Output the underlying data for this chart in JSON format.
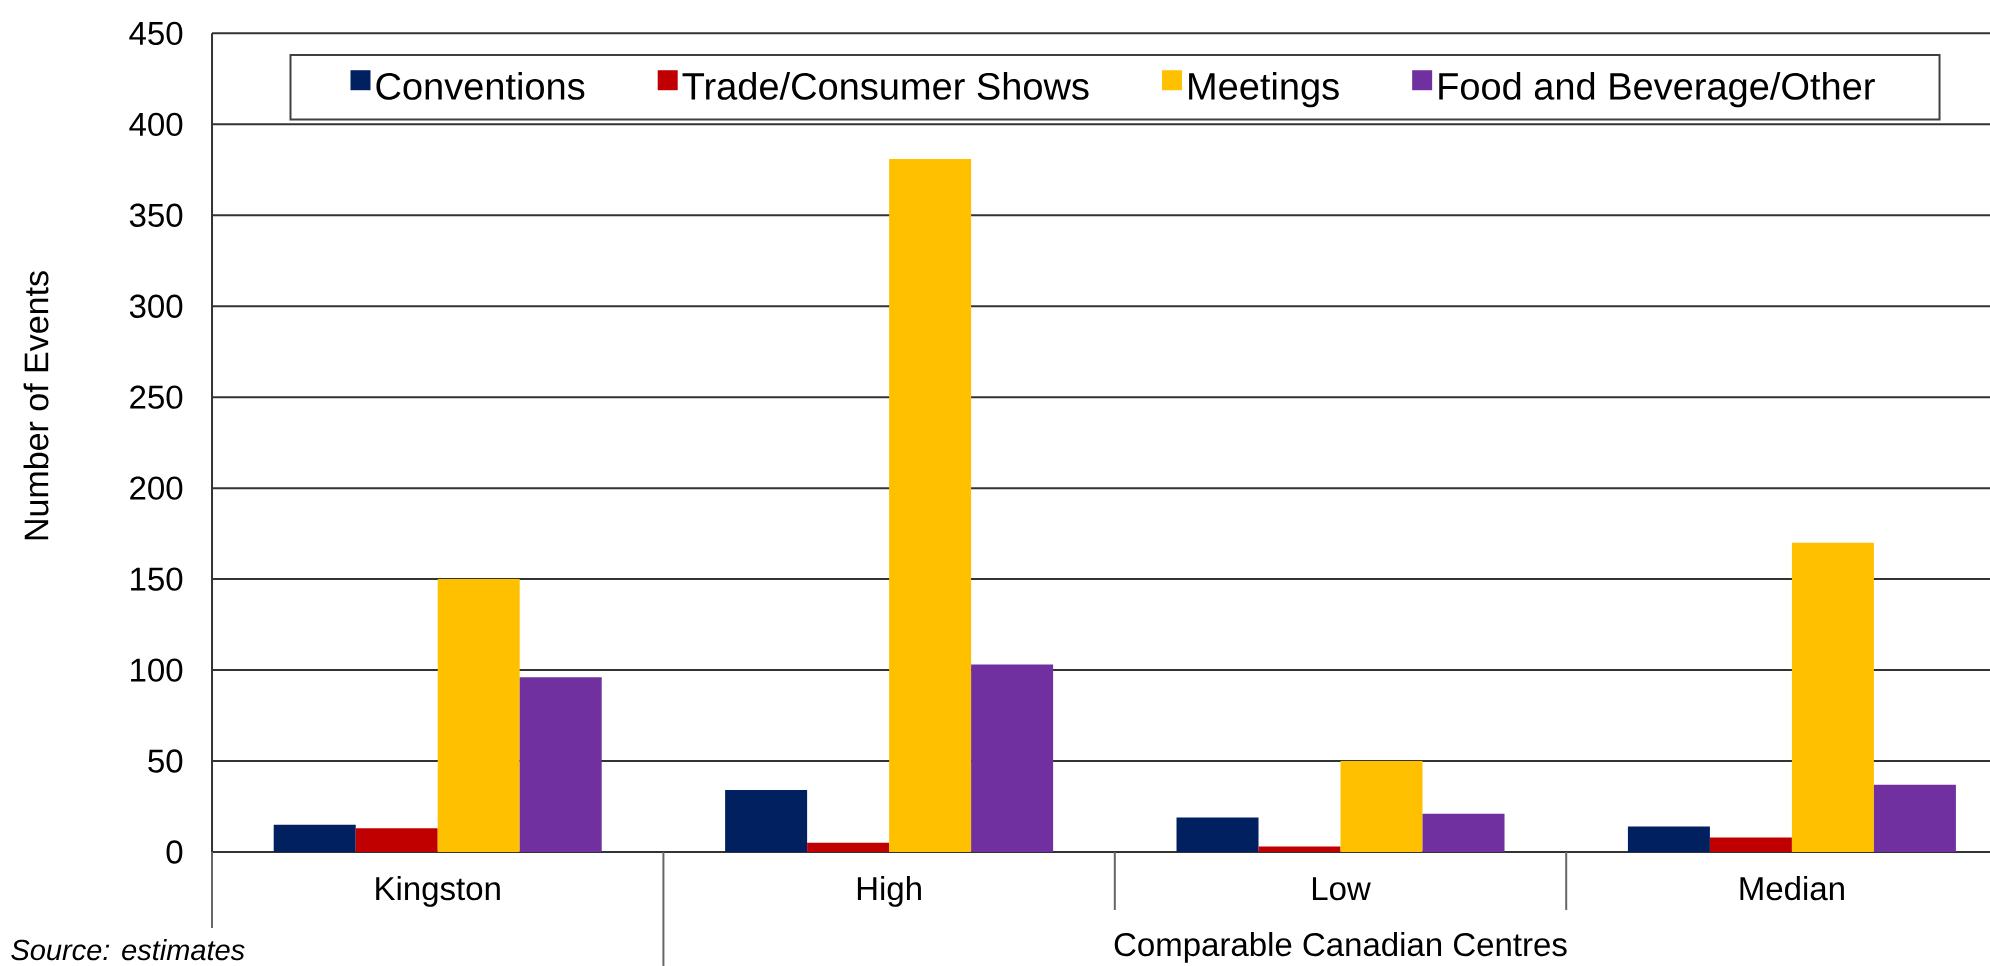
{
  "chart_data": {
    "type": "bar",
    "ylabel": "Number of Events",
    "xlabel": "Comparable Canadian Centres",
    "categories": [
      "Kingston",
      "High",
      "Low",
      "Median"
    ],
    "series": [
      {
        "name": "Conventions",
        "color": "#002060",
        "values": [
          15,
          34,
          19,
          14
        ]
      },
      {
        "name": "Trade/Consumer Shows",
        "color": "#C00000",
        "values": [
          13,
          5,
          3,
          8
        ]
      },
      {
        "name": "Meetings",
        "color": "#FFC000",
        "values": [
          150,
          381,
          50,
          170
        ]
      },
      {
        "name": "Food and Beverage/Other",
        "color": "#7030A0",
        "values": [
          96,
          103,
          21,
          37
        ]
      }
    ],
    "ylim": [
      0,
      450
    ],
    "yticks": [
      0,
      50,
      100,
      150,
      200,
      250,
      300,
      350,
      400,
      450
    ],
    "grid": "y",
    "legend": "top",
    "annotations": [
      "Source: estimates"
    ]
  }
}
